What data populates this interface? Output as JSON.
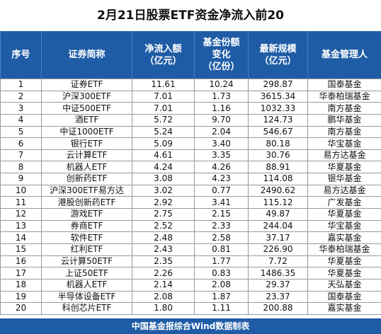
{
  "title": "2月21日股票ETF资金净流入前20",
  "headers": [
    [
      "序号"
    ],
    [
      "证券简称"
    ],
    [
      "净流入额",
      "（亿元）"
    ],
    [
      "基金份额",
      "变化",
      "（亿份）"
    ],
    [
      "最新规模",
      "（亿元）"
    ],
    [
      "基金管理人"
    ]
  ],
  "rows": [
    [
      "1",
      "证券ETF",
      "11.61",
      "10.24",
      "298.87",
      "国泰基金"
    ],
    [
      "2",
      "沪深300ETF",
      "7.01",
      "1.73",
      "3615.34",
      "华泰柏瑞基金"
    ],
    [
      "3",
      "中证500ETF",
      "7.01",
      "1.16",
      "1032.33",
      "南方基金"
    ],
    [
      "4",
      "酒ETF",
      "5.72",
      "9.70",
      "124.73",
      "鹏华基金"
    ],
    [
      "5",
      "中证1000ETF",
      "5.24",
      "2.04",
      "546.67",
      "南方基金"
    ],
    [
      "6",
      "银行ETF",
      "5.09",
      "3.40",
      "80.18",
      "华宝基金"
    ],
    [
      "7",
      "云计算ETF",
      "4.61",
      "3.35",
      "30.76",
      "易方达基金"
    ],
    [
      "8",
      "机器人ETF",
      "4.24",
      "4.26",
      "88.91",
      "华夏基金"
    ],
    [
      "9",
      "创新药ETF",
      "3.08",
      "4.23",
      "114.08",
      "银华基金"
    ],
    [
      "10",
      "沪深300ETF易方达",
      "3.02",
      "0.77",
      "2490.62",
      "易方达基金"
    ],
    [
      "11",
      "港股创新药ETF",
      "2.92",
      "3.41",
      "115.12",
      "广发基金"
    ],
    [
      "12",
      "游戏ETF",
      "2.75",
      "2.15",
      "49.87",
      "华夏基金"
    ],
    [
      "13",
      "券商ETF",
      "2.52",
      "2.33",
      "244.04",
      "华宝基金"
    ],
    [
      "14",
      "软件ETF",
      "2.48",
      "2.58",
      "37.17",
      "嘉实基金"
    ],
    [
      "15",
      "红利ETF",
      "2.43",
      "0.81",
      "226.90",
      "华泰柏瑞基金"
    ],
    [
      "16",
      "云计算50ETF",
      "2.35",
      "1.77",
      "7.72",
      "华夏基金"
    ],
    [
      "17",
      "上证50ETF",
      "2.26",
      "0.83",
      "1486.35",
      "华夏基金"
    ],
    [
      "18",
      "机器人ETF",
      "2.14",
      "2.08",
      "29.37",
      "天弘基金"
    ],
    [
      "19",
      "半导体设备ETF",
      "2.08",
      "1.87",
      "23.37",
      "国泰基金"
    ],
    [
      "20",
      "科创芯片ETF",
      "1.80",
      "1.11",
      "200.88",
      "嘉实基金"
    ]
  ],
  "footer": "中国基金报综合Wind数据制表",
  "colors": {
    "header_bg": "#1f5ca6",
    "header_text": "#ffffff",
    "grid": "#9a9a9a"
  }
}
